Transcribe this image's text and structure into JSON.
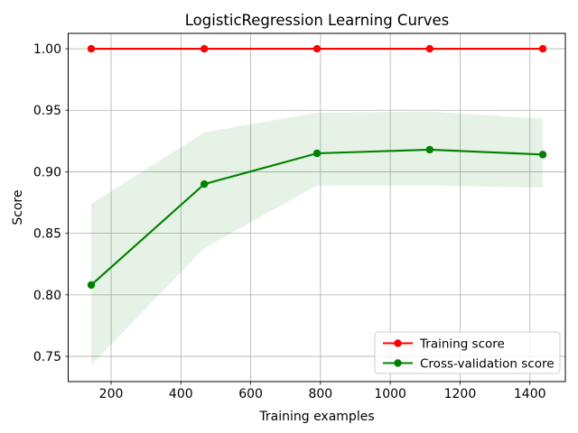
{
  "figure": {
    "title": "LogisticRegression Learning Curves",
    "xlabel": "Training examples",
    "ylabel": "Score"
  },
  "legend": {
    "position": "lower right",
    "items": [
      {
        "label": "Training score",
        "color": "#ff0000"
      },
      {
        "label": "Cross-validation score",
        "color": "#008000"
      }
    ]
  },
  "chart_data": {
    "type": "line",
    "title": "LogisticRegression Learning Curves",
    "xlabel": "Training examples",
    "ylabel": "Score",
    "x": [
      143,
      467,
      790,
      1113,
      1437
    ],
    "series": [
      {
        "name": "Training score",
        "color": "#ff0000",
        "values": [
          1.0,
          1.0,
          1.0,
          1.0,
          1.0
        ]
      },
      {
        "name": "Cross-validation score",
        "color": "#008000",
        "values": [
          0.808,
          0.89,
          0.915,
          0.918,
          0.914
        ],
        "band": {
          "lower": [
            0.743,
            0.838,
            0.889,
            0.889,
            0.887
          ],
          "upper": [
            0.874,
            0.932,
            0.948,
            0.949,
            0.943
          ],
          "fill_color": "#008000",
          "fill_opacity": 0.1
        }
      }
    ],
    "xticks": [
      200,
      400,
      600,
      800,
      1000,
      1200,
      1400
    ],
    "xtick_labels": [
      "200",
      "400",
      "600",
      "800",
      "1000",
      "1200",
      "1400"
    ],
    "yticks": [
      0.75,
      0.8,
      0.85,
      0.9,
      0.95,
      1.0
    ],
    "ytick_labels": [
      "0.75",
      "0.80",
      "0.85",
      "0.90",
      "0.95",
      "1.00"
    ],
    "xlim": [
      78.3,
      1501.7
    ],
    "ylim": [
      0.7295,
      1.0125
    ],
    "grid": true,
    "grid_color": "#b0b0b0",
    "legend_position": "lower right",
    "marker": "o",
    "line_width": 2.1,
    "marker_radius": 4.2
  }
}
